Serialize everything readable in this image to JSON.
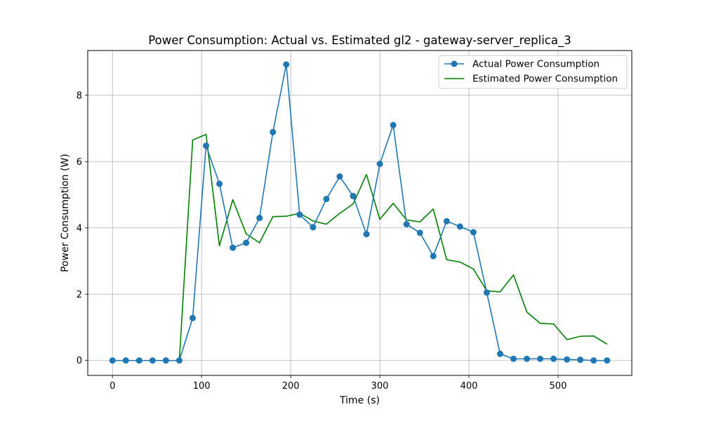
{
  "chart_data": {
    "type": "line",
    "title": "Power Consumption: Actual vs. Estimated gl2 - gateway-server_replica_3",
    "xlabel": "Time (s)",
    "ylabel": "Power Consumption (W)",
    "xlim": [
      -27.75,
      582.75
    ],
    "ylim": [
      -0.45,
      9.35
    ],
    "xticks": [
      0,
      100,
      200,
      300,
      400,
      500
    ],
    "yticks": [
      0,
      2,
      4,
      6,
      8
    ],
    "grid": true,
    "legend_position": "top-right",
    "series": [
      {
        "name": "Actual Power Consumption",
        "color": "#1f77b4",
        "marker": "circle",
        "x": [
          0,
          15,
          30,
          45,
          60,
          75,
          90,
          105,
          120,
          135,
          150,
          165,
          180,
          195,
          210,
          225,
          240,
          255,
          270,
          285,
          300,
          315,
          330,
          345,
          360,
          375,
          390,
          405,
          420,
          435,
          450,
          465,
          480,
          495,
          510,
          525,
          540,
          555
        ],
        "y": [
          0.0,
          0.0,
          0.0,
          0.0,
          0.0,
          0.0,
          1.28,
          6.48,
          5.33,
          3.4,
          3.55,
          4.3,
          6.89,
          8.93,
          4.4,
          4.02,
          4.87,
          5.55,
          4.96,
          3.81,
          5.93,
          7.1,
          4.11,
          3.85,
          3.15,
          4.2,
          4.04,
          3.87,
          2.05,
          0.2,
          0.05,
          0.05,
          0.05,
          0.05,
          0.03,
          0.02,
          0.0,
          0.0
        ]
      },
      {
        "name": "Estimated Power Consumption",
        "color": "#008000",
        "marker": "none",
        "x": [
          0,
          15,
          30,
          45,
          60,
          75,
          90,
          105,
          120,
          135,
          150,
          165,
          180,
          195,
          210,
          225,
          240,
          255,
          270,
          285,
          300,
          315,
          330,
          345,
          360,
          375,
          390,
          405,
          420,
          435,
          450,
          465,
          480,
          495,
          510,
          525,
          540,
          555
        ],
        "y": [
          0.0,
          0.0,
          0.0,
          0.0,
          0.0,
          0.0,
          6.65,
          6.82,
          3.46,
          4.85,
          3.82,
          3.55,
          4.34,
          4.35,
          4.44,
          4.21,
          4.11,
          4.44,
          4.72,
          5.61,
          4.26,
          4.74,
          4.24,
          4.18,
          4.57,
          3.04,
          2.97,
          2.76,
          2.1,
          2.07,
          2.58,
          1.46,
          1.12,
          1.1,
          0.63,
          0.73,
          0.74,
          0.49
        ]
      }
    ]
  }
}
